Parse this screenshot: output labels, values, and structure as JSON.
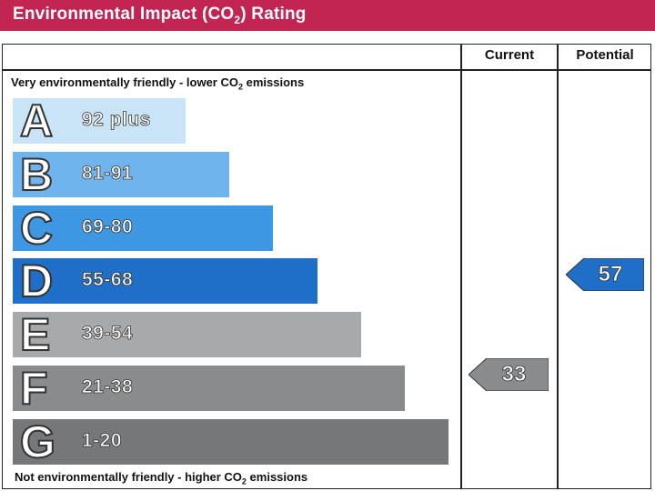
{
  "title": {
    "before": "Environmental Impact (CO",
    "sub": "2",
    "after": ") Rating",
    "background": "#c22552"
  },
  "columns": {
    "current": "Current",
    "potential": "Potential"
  },
  "top_caption": {
    "before": "Very environmentally friendly - lower CO",
    "sub": "2",
    "after": " emissions"
  },
  "bottom_caption": {
    "before": "Not environmentally friendly - higher CO",
    "sub": "2",
    "after": " emissions"
  },
  "chart_data": {
    "type": "bar",
    "orientation": "horizontal",
    "bands": [
      {
        "letter": "A",
        "range": "92 plus",
        "color": "#c8e4f6"
      },
      {
        "letter": "B",
        "range": "81-91",
        "color": "#6fb4ec"
      },
      {
        "letter": "C",
        "range": "69-80",
        "color": "#3d97e2"
      },
      {
        "letter": "D",
        "range": "55-68",
        "color": "#1f6ec7"
      },
      {
        "letter": "E",
        "range": "39-54",
        "color": "#a8a9ab"
      },
      {
        "letter": "F",
        "range": "21-38",
        "color": "#8a8b8d"
      },
      {
        "letter": "G",
        "range": "1-20",
        "color": "#767779"
      }
    ],
    "current": {
      "value": "33",
      "band": "F",
      "color": "#8a8b8d"
    },
    "potential": {
      "value": "57",
      "band": "D",
      "color": "#1f6ec7"
    }
  }
}
